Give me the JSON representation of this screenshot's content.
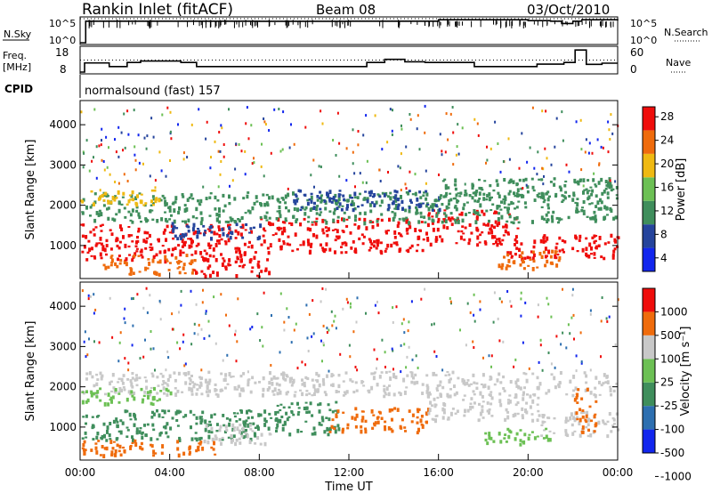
{
  "header": {
    "station": "Rankin Inlet (fitACF)",
    "beam": "Beam 08",
    "date": "03/Oct/2010"
  },
  "chart_data": [
    {
      "type": "line",
      "panel": "noise",
      "left_label": "N.Sky",
      "right_label": "N.Search",
      "left_ticks": [
        "10^5",
        "10^0"
      ],
      "right_ticks": [
        "10^5",
        "10^0"
      ],
      "scale": "log",
      "ylim": [
        1,
        100000
      ],
      "series": [
        {
          "name": "N.Sky",
          "style": "solid",
          "x": [
            0.0,
            0.2,
            0.25,
            8,
            12,
            16,
            20,
            21.0,
            21.5,
            22.0,
            22.4,
            24.0
          ],
          "values": [
            1,
            1,
            30000,
            28000,
            30000,
            60000,
            40000,
            30000,
            10000,
            30000,
            60000,
            40000
          ]
        },
        {
          "name": "N.Search",
          "style": "dotted",
          "x": [
            0,
            24
          ],
          "values": [
            100000,
            100000
          ]
        }
      ]
    },
    {
      "type": "line",
      "panel": "frequency",
      "left_label": "Freq. [MHz]",
      "right_label": "Nave",
      "left_ticks": [
        "18",
        "8"
      ],
      "right_ticks": [
        "60",
        "0"
      ],
      "ylim": [
        8,
        18
      ],
      "series": [
        {
          "name": "Freq.",
          "style": "solid",
          "x": [
            0.0,
            0.2,
            1.3,
            2.1,
            2.7,
            4.5,
            5.2,
            12.8,
            13.6,
            14.5,
            15.4,
            17.6,
            20.4,
            21.6,
            22.1,
            22.6,
            23.3,
            24.0
          ],
          "values": [
            8,
            11.8,
            10.3,
            12.0,
            12.6,
            12.0,
            10.3,
            12.0,
            13.3,
            12.3,
            12.0,
            10.3,
            11.3,
            12.0,
            17.2,
            11.2,
            11.7,
            11.7
          ]
        },
        {
          "name": "Nave",
          "style": "dotted",
          "x": [
            0,
            24
          ],
          "values": [
            13,
            13
          ]
        }
      ]
    },
    {
      "type": "heatmap",
      "panel": "power",
      "ylabel": "Slant Range [km]",
      "yticks": [
        1000,
        2000,
        3000,
        4000
      ],
      "ylim": [
        180,
        4600
      ],
      "xlim": [
        0,
        24
      ],
      "colorbar": {
        "label": "Power [dB]",
        "ticks": [
          "4",
          "8",
          "12",
          "16",
          "20",
          "24",
          "28"
        ],
        "colors": [
          "#1226ee",
          "#25449c",
          "#3f8e5c",
          "#6cc054",
          "#efb912",
          "#ef6b0c",
          "#ef0d0b"
        ]
      },
      "bands": [
        {
          "x0": 0.0,
          "x1": 7.8,
          "lo": 650,
          "hi": 1550,
          "color": "#ef0d0b"
        },
        {
          "x0": 1.0,
          "x1": 5.2,
          "lo": 300,
          "hi": 800,
          "color": "#ef6b0c"
        },
        {
          "x0": 5.0,
          "x1": 8.5,
          "lo": 250,
          "hi": 700,
          "color": "#ef0d0b"
        },
        {
          "x0": 8.0,
          "x1": 15.5,
          "lo": 850,
          "hi": 1700,
          "color": "#ef0d0b"
        },
        {
          "x0": 15.5,
          "x1": 19.5,
          "lo": 1050,
          "hi": 1900,
          "color": "#ef0d0b"
        },
        {
          "x0": 19.0,
          "x1": 24.0,
          "lo": 700,
          "hi": 1300,
          "color": "#ef0d0b"
        },
        {
          "x0": 0.0,
          "x1": 24.0,
          "lo": 1600,
          "hi": 2350,
          "color": "#3f8e5c"
        },
        {
          "x0": 0.0,
          "x1": 3.5,
          "lo": 2000,
          "hi": 2400,
          "color": "#efb912"
        },
        {
          "x0": 9.5,
          "x1": 16.0,
          "lo": 1900,
          "hi": 2400,
          "color": "#25449c"
        },
        {
          "x0": 16.0,
          "x1": 24.0,
          "lo": 2200,
          "hi": 2700,
          "color": "#3f8e5c"
        },
        {
          "x0": 4.0,
          "x1": 8.0,
          "lo": 1200,
          "hi": 1600,
          "color": "#25449c"
        },
        {
          "x0": 18.5,
          "x1": 21.5,
          "lo": 450,
          "hi": 900,
          "color": "#ef6b0c"
        }
      ]
    },
    {
      "type": "heatmap",
      "panel": "velocity",
      "ylabel": "Slant Range [km]",
      "yticks": [
        1000,
        2000,
        3000,
        4000
      ],
      "ylim": [
        180,
        4600
      ],
      "xlim": [
        0,
        24
      ],
      "xlabel": "Time UT",
      "xticks": [
        "00:00",
        "04:00",
        "08:00",
        "12:00",
        "16:00",
        "20:00",
        "00:00"
      ],
      "colorbar": {
        "label": "Velocity [m s⁻¹]",
        "ticks": [
          "1000",
          "500",
          "100",
          "25",
          "-25",
          "-100",
          "-500",
          "-1000"
        ],
        "colors": [
          "#1226ee",
          "#2d6fb0",
          "#3f8e5c",
          "#6cc054",
          "#c8c8c8",
          "#ef6b0c",
          "#ef0d0b"
        ]
      },
      "bands": [
        {
          "x0": 0.0,
          "x1": 8.0,
          "lo": 700,
          "hi": 1450,
          "color": "#3f8e5c"
        },
        {
          "x0": 0.0,
          "x1": 24.0,
          "lo": 1800,
          "hi": 2400,
          "color": "#c8c8c8"
        },
        {
          "x0": 5.5,
          "x1": 8.5,
          "lo": 600,
          "hi": 1100,
          "color": "#c8c8c8"
        },
        {
          "x0": 8.0,
          "x1": 11.5,
          "lo": 850,
          "hi": 1650,
          "color": "#3f8e5c"
        },
        {
          "x0": 11.0,
          "x1": 15.5,
          "lo": 900,
          "hi": 1500,
          "color": "#ef6b0c"
        },
        {
          "x0": 15.5,
          "x1": 20.5,
          "lo": 1200,
          "hi": 1850,
          "color": "#c8c8c8"
        },
        {
          "x0": 20.5,
          "x1": 24.0,
          "lo": 800,
          "hi": 1400,
          "color": "#c8c8c8"
        },
        {
          "x0": 22.0,
          "x1": 23.0,
          "lo": 900,
          "hi": 2000,
          "color": "#ef6b0c"
        },
        {
          "x0": 0.0,
          "x1": 6.0,
          "lo": 300,
          "hi": 700,
          "color": "#ef6b0c"
        },
        {
          "x0": 0.0,
          "x1": 4.0,
          "lo": 1600,
          "hi": 2000,
          "color": "#6cc054"
        },
        {
          "x0": 18.0,
          "x1": 21.0,
          "lo": 600,
          "hi": 1000,
          "color": "#6cc054"
        }
      ]
    }
  ],
  "cpid": {
    "label": "CPID",
    "text": "normalsound (fast) 157"
  }
}
